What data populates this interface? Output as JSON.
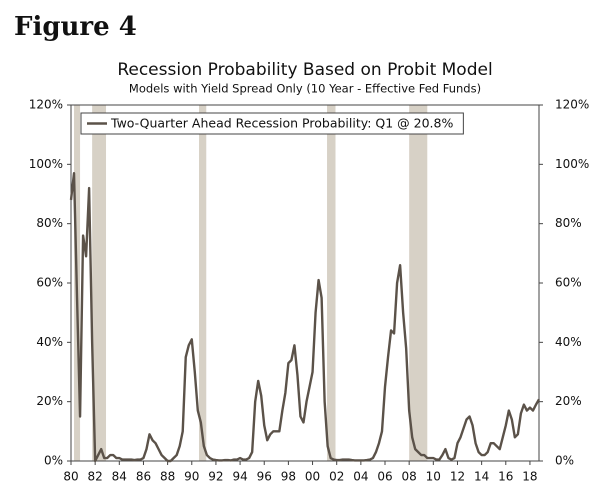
{
  "figure_label": "Figure 4",
  "chart_data": {
    "type": "line",
    "title": "Recession Probability Based on Probit Model",
    "subtitle": "Models with Yield Spread Only (10 Year - Effective Fed Funds)",
    "x": [
      1980,
      1980.25,
      1980.5,
      1980.75,
      1981,
      1981.25,
      1981.5,
      1981.75,
      1982,
      1982.25,
      1982.5,
      1982.75,
      1983,
      1983.25,
      1983.5,
      1983.75,
      1984,
      1984.25,
      1984.5,
      1984.75,
      1985,
      1985.25,
      1985.5,
      1985.75,
      1986,
      1986.25,
      1986.5,
      1986.75,
      1987,
      1987.25,
      1987.5,
      1987.75,
      1988,
      1988.25,
      1988.5,
      1988.75,
      1989,
      1989.25,
      1989.5,
      1989.75,
      1990,
      1990.25,
      1990.5,
      1990.75,
      1991,
      1991.25,
      1991.5,
      1991.75,
      1992,
      1992.25,
      1992.5,
      1992.75,
      1993,
      1993.25,
      1993.5,
      1993.75,
      1994,
      1994.25,
      1994.5,
      1994.75,
      1995,
      1995.25,
      1995.5,
      1995.75,
      1996,
      1996.25,
      1996.5,
      1996.75,
      1997,
      1997.25,
      1997.5,
      1997.75,
      1998,
      1998.25,
      1998.5,
      1998.75,
      1999,
      1999.25,
      1999.5,
      1999.75,
      2000,
      2000.25,
      2000.5,
      2000.75,
      2001,
      2001.25,
      2001.5,
      2001.75,
      2002,
      2002.25,
      2002.5,
      2002.75,
      2003,
      2003.25,
      2003.5,
      2003.75,
      2004,
      2004.25,
      2004.5,
      2004.75,
      2005,
      2005.25,
      2005.5,
      2005.75,
      2006,
      2006.25,
      2006.5,
      2006.75,
      2007,
      2007.25,
      2007.5,
      2007.75,
      2008,
      2008.25,
      2008.5,
      2008.75,
      2009,
      2009.25,
      2009.5,
      2009.75,
      2010,
      2010.25,
      2010.5,
      2010.75,
      2011,
      2011.25,
      2011.5,
      2011.75,
      2012,
      2012.25,
      2012.5,
      2012.75,
      2013,
      2013.25,
      2013.5,
      2013.75,
      2014,
      2014.25,
      2014.5,
      2014.75,
      2015,
      2015.25,
      2015.5,
      2015.75,
      2016,
      2016.25,
      2016.5,
      2016.75,
      2017,
      2017.25,
      2017.5,
      2017.75,
      2018,
      2018.25,
      2018.5,
      2018.75
    ],
    "series": [
      {
        "name": "Two-Quarter Ahead Recession Probability: Q1 @ 20.8%",
        "color": "#5b5249",
        "values": [
          88,
          97,
          55,
          15,
          76,
          69,
          92,
          40,
          0,
          2,
          4,
          1,
          1,
          2,
          2,
          1,
          1,
          0.5,
          0.5,
          0.5,
          0.5,
          0.3,
          0.5,
          0.5,
          1,
          4,
          9,
          7,
          6,
          4,
          2,
          1,
          0,
          0,
          1,
          2,
          5,
          10,
          35,
          39,
          41,
          30,
          17,
          13,
          5,
          2,
          1,
          0.5,
          0.3,
          0.2,
          0.2,
          0.3,
          0.3,
          0.2,
          0.5,
          0.5,
          1,
          0.5,
          0.5,
          1,
          3,
          20,
          27,
          22,
          12,
          7,
          9,
          10,
          10,
          10,
          17,
          23,
          33,
          34,
          39,
          29,
          15,
          13,
          20,
          25,
          30,
          50,
          61,
          55,
          20,
          5,
          1,
          0.5,
          0.3,
          0.3,
          0.5,
          0.5,
          0.5,
          0.3,
          0.2,
          0.2,
          0.2,
          0.2,
          0.3,
          0.5,
          1,
          3,
          6,
          10,
          25,
          35,
          44,
          43,
          60,
          66,
          50,
          38,
          17,
          8,
          4,
          3,
          2,
          2,
          1,
          1,
          1,
          0.5,
          0.5,
          2,
          4,
          1,
          0.5,
          1,
          6,
          8,
          11,
          14,
          15,
          12,
          6,
          3,
          2,
          2,
          3,
          6,
          6,
          5,
          4,
          8,
          12,
          17,
          14,
          8,
          9,
          16,
          19,
          17,
          18,
          17,
          19,
          20.8
        ]
      }
    ],
    "recessions": [
      [
        1980.25,
        1980.75
      ],
      [
        1981.75,
        1982.9
      ],
      [
        1990.6,
        1991.2
      ],
      [
        2001.2,
        2001.9
      ],
      [
        2008,
        2009.5
      ]
    ],
    "recession_color": "#d7d1c6",
    "xlim": [
      1980,
      2018.75
    ],
    "xticks": [
      {
        "value": 1980,
        "label": "80"
      },
      {
        "value": 1982,
        "label": "82"
      },
      {
        "value": 1984,
        "label": "84"
      },
      {
        "value": 1986,
        "label": "86"
      },
      {
        "value": 1988,
        "label": "88"
      },
      {
        "value": 1990,
        "label": "90"
      },
      {
        "value": 1992,
        "label": "92"
      },
      {
        "value": 1994,
        "label": "94"
      },
      {
        "value": 1996,
        "label": "96"
      },
      {
        "value": 1998,
        "label": "98"
      },
      {
        "value": 2000,
        "label": "00"
      },
      {
        "value": 2002,
        "label": "02"
      },
      {
        "value": 2004,
        "label": "04"
      },
      {
        "value": 2006,
        "label": "06"
      },
      {
        "value": 2008,
        "label": "08"
      },
      {
        "value": 2010,
        "label": "10"
      },
      {
        "value": 2012,
        "label": "12"
      },
      {
        "value": 2014,
        "label": "14"
      },
      {
        "value": 2016,
        "label": "16"
      },
      {
        "value": 2018,
        "label": "18"
      }
    ],
    "ylim": [
      0,
      120
    ],
    "yticks": [
      {
        "value": 0,
        "label": "0%"
      },
      {
        "value": 20,
        "label": "20%"
      },
      {
        "value": 40,
        "label": "40%"
      },
      {
        "value": 60,
        "label": "60%"
      },
      {
        "value": 80,
        "label": "80%"
      },
      {
        "value": 100,
        "label": "100%"
      },
      {
        "value": 120,
        "label": "120%"
      }
    ],
    "y2lim": [
      0,
      120
    ],
    "y2ticks": [
      {
        "value": 0,
        "label": "0%"
      },
      {
        "value": 20,
        "label": "20%"
      },
      {
        "value": 40,
        "label": "40%"
      },
      {
        "value": 60,
        "label": "60%"
      },
      {
        "value": 80,
        "label": "80%"
      },
      {
        "value": 100,
        "label": "100%"
      },
      {
        "value": 120,
        "label": "120%"
      }
    ],
    "legend": "top-left"
  }
}
